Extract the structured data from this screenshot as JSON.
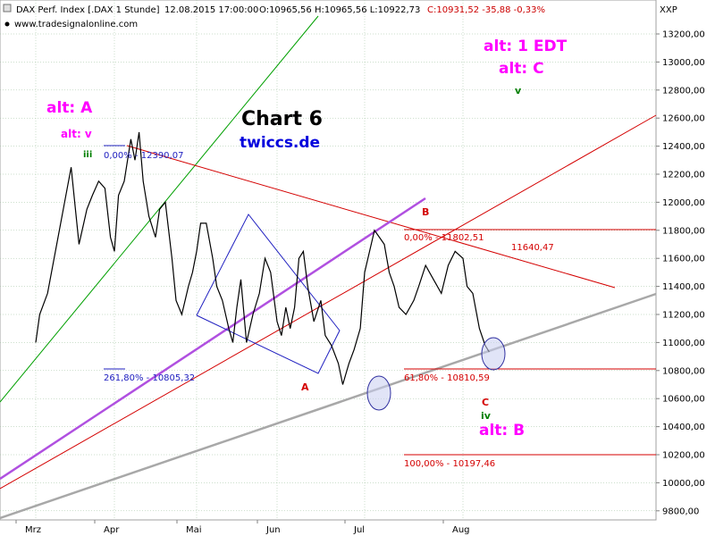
{
  "header": {
    "instrument": "DAX Perf. Index [.DAX  1 Stunde]",
    "datetime": "12.08.2015 17:00:00",
    "ohlc": "O:10965,56 H:10965,56 L:10922,73",
    "close": "C:10931,52 -35,88 -0,33%",
    "source": "www.tradesignalonline.com",
    "axis_label": "XXP"
  },
  "annotations": {
    "chart_title": "Chart 6",
    "site": "twiccs.de",
    "alt_a": "alt: A",
    "alt_v": "alt: v",
    "alt_iii": "iii",
    "alt_1edt": "alt: 1 EDT",
    "alt_c": "alt: C",
    "green_v": "v",
    "wave_a": "A",
    "wave_b": "B",
    "wave_c": "C",
    "wave_iv": "iv",
    "alt_b": "alt: B",
    "fib_0": "0,00% - 12390,07",
    "fib_261": "261,80% - 10805,32",
    "fib_b0": "0,00% - 11802,51",
    "level_11640": "11640,47",
    "fib_618": "61,80% - 10810,59",
    "fib_100": "100,00% - 10197,46"
  },
  "colors": {
    "price": "#000000",
    "grid": "#9bbf9b",
    "red_line": "#d40000",
    "green_line": "#00a000",
    "purple_line": "#b050e0",
    "gray_line": "#a8a8a8",
    "blue_line": "#2020c0",
    "magenta_text": "#ff00ff",
    "blue_text": "#0000dd"
  },
  "chart_data": {
    "type": "line",
    "title": "",
    "ylabel": "",
    "xlabel": "",
    "ylim": [
      9700,
      13400
    ],
    "grid": true,
    "x_ticks": [
      "Mrz",
      "Apr",
      "Mai",
      "Jun",
      "Jul",
      "Aug"
    ],
    "y_ticks": [
      "9800,00",
      "10000,00",
      "10200,00",
      "10400,00",
      "10600,00",
      "10800,00",
      "11000,00",
      "11200,00",
      "11400,00",
      "11600,00",
      "11800,00",
      "12000,00",
      "12200,00",
      "12400,00",
      "12600,00",
      "12800,00",
      "13000,00",
      "13200,00"
    ],
    "series": [
      {
        "values_x_month": [
          0.0,
          0.05,
          0.15,
          0.25,
          0.35,
          0.45,
          0.55,
          0.65,
          0.72,
          0.8,
          0.88,
          0.95,
          1.0,
          1.05,
          1.12,
          1.2,
          1.25,
          1.3,
          1.35,
          1.42,
          1.5,
          1.55,
          1.62,
          1.7,
          1.75,
          1.82,
          1.9,
          1.95,
          2.0,
          2.05,
          2.12,
          2.2,
          2.25,
          2.32,
          2.4,
          2.45,
          2.5,
          2.55,
          2.62,
          2.7,
          2.78,
          2.85,
          2.92,
          3.0,
          3.05,
          3.1,
          3.15,
          3.2,
          3.25,
          3.3,
          3.35,
          3.42,
          3.5,
          3.55,
          3.62,
          3.7,
          3.75,
          3.82,
          3.88,
          3.95,
          4.0,
          4.05,
          4.1,
          4.15,
          4.2,
          4.25,
          4.3,
          4.35,
          4.42,
          4.5,
          4.55,
          4.62,
          4.7,
          4.78,
          4.85,
          4.92,
          5.0,
          5.05,
          5.12,
          5.2,
          5.27,
          5.32
        ],
        "values": [
          11000,
          11200,
          11350,
          11650,
          11950,
          12250,
          11700,
          11950,
          12050,
          12150,
          12100,
          11750,
          11650,
          12050,
          12150,
          12450,
          12300,
          12500,
          12150,
          11900,
          11750,
          11950,
          12000,
          11600,
          11300,
          11200,
          11400,
          11500,
          11650,
          11850,
          11850,
          11600,
          11400,
          11300,
          11100,
          11000,
          11250,
          11450,
          11000,
          11200,
          11350,
          11600,
          11500,
          11150,
          11050,
          11250,
          11100,
          11250,
          11600,
          11650,
          11400,
          11150,
          11300,
          11050,
          10980,
          10850,
          10700,
          10850,
          10950,
          11100,
          11500,
          11650,
          11800,
          11750,
          11700,
          11500,
          11400,
          11250,
          11200,
          11300,
          11400,
          11550,
          11450,
          11350,
          11550,
          11650,
          11600,
          11400,
          11350,
          11100,
          10980,
          10932
        ]
      }
    ]
  }
}
